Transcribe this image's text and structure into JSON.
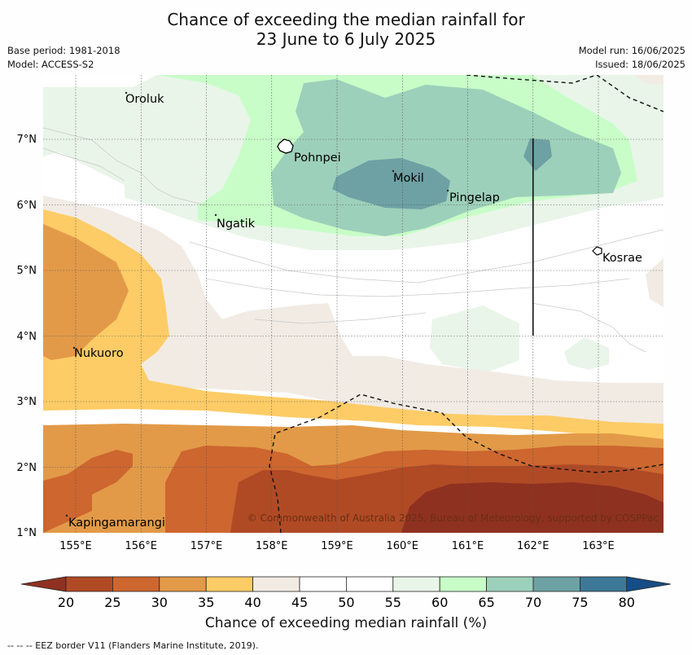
{
  "title": {
    "line1": "Chance of exceeding the median rainfall for",
    "line2": "23 June to 6 July 2025"
  },
  "meta": {
    "base_period": "Base period: 1981-2018",
    "model": "Model: ACCESS-S2",
    "model_run": "Model run: 16/06/2025",
    "issued": "Issued: 18/06/2025"
  },
  "map": {
    "lon_ticks": [
      "155°E",
      "156°E",
      "157°E",
      "158°E",
      "159°E",
      "160°E",
      "161°E",
      "162°E",
      "163°E"
    ],
    "lat_ticks": [
      "1°N",
      "2°N",
      "3°N",
      "4°N",
      "5°N",
      "6°N",
      "7°N"
    ],
    "copyright": "© Commonwealth of Australia 2025, Bureau of Meteorology, supported by COSPPac",
    "places": [
      {
        "name": "Oroluk",
        "lon": 155.75,
        "lat": 7.62
      },
      {
        "name": "Pohnpei",
        "lon": 158.33,
        "lat": 6.86
      },
      {
        "name": "Mokil",
        "lon": 160.1,
        "lat": 6.3
      },
      {
        "name": "Pingelap",
        "lon": 160.7,
        "lat": 6.05
      },
      {
        "name": "Ngatik",
        "lon": 157.1,
        "lat": 5.7
      },
      {
        "name": "Kosrae",
        "lon": 163.0,
        "lat": 5.1
      },
      {
        "name": "Nukuoro",
        "lon": 154.95,
        "lat": 3.85
      },
      {
        "name": "Kapingamarangi",
        "lon": 154.8,
        "lat": 1.1
      }
    ]
  },
  "legend": {
    "title": "Chance of exceeding median rainfall (%)",
    "ticks": [
      "20",
      "25",
      "30",
      "35",
      "40",
      "45",
      "50",
      "55",
      "60",
      "65",
      "70",
      "75",
      "80"
    ],
    "colors": [
      "#8f3120",
      "#b04a25",
      "#cd662f",
      "#e29a48",
      "#fecc66",
      "#f1ebe4",
      "#ffffff",
      "#ffffff",
      "#e9f5e9",
      "#c8fdc8",
      "#9dd0ba",
      "#6ea1a4",
      "#3e7897",
      "#174d86"
    ]
  },
  "eez_note": "--  --  -- EEZ border V11 (Flanders Marine Institute, 2019)."
}
